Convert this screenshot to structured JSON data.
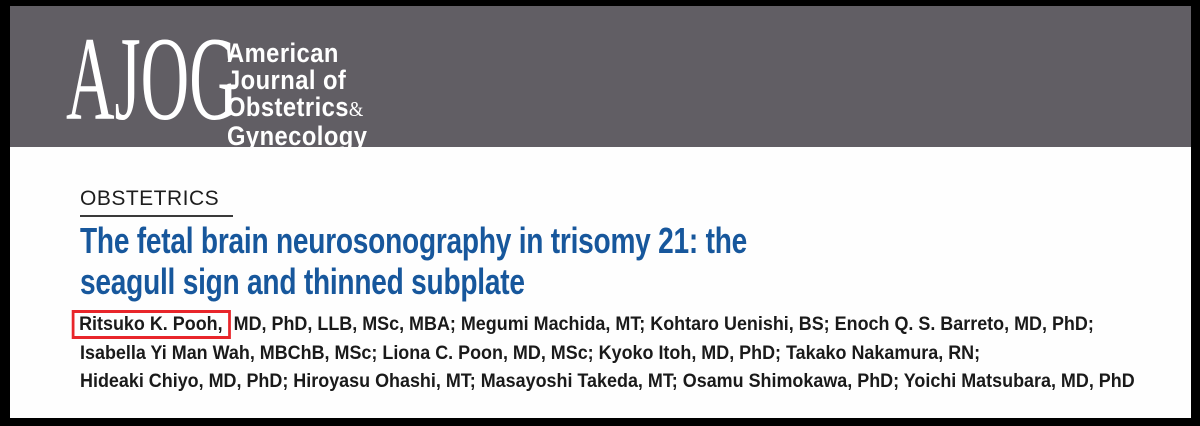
{
  "masthead": {
    "logo_acronym": "AJOG",
    "journal_name_lines": [
      "American",
      "Journal of",
      "Obstetrics",
      "Gynecology"
    ],
    "ampersand": "&"
  },
  "article": {
    "section_label": "OBSTETRICS",
    "title_line1": "The fetal brain neurosonography in trisomy 21: the",
    "title_line2": "seagull sign and thinned subplate",
    "authors": {
      "highlighted_author": "Ritsuko K. Pooh,",
      "line1_rest": "MD, PhD, LLB, MSc, MBA; Megumi Machida, MT; Kohtaro Uenishi, BS; Enoch Q. S. Barreto, MD, PhD;",
      "line2": "Isabella Yi Man Wah, MBChB, MSc; Liona C. Poon, MD, MSc; Kyoko Itoh, MD, PhD; Takako Nakamura, RN;",
      "line3": "Hideaki Chiyo, MD, PhD; Hiroyasu Ohashi, MT; Masayoshi Takeda, MT; Osamu Shimokawa, PhD; Yoichi Matsubara, MD, PhD"
    }
  },
  "colors": {
    "frame": "#000000",
    "banner": "#615e64",
    "page": "#fefefe",
    "title_blue": "#17579c",
    "highlight_red": "#e8252a",
    "text": "#1a1a1a"
  }
}
